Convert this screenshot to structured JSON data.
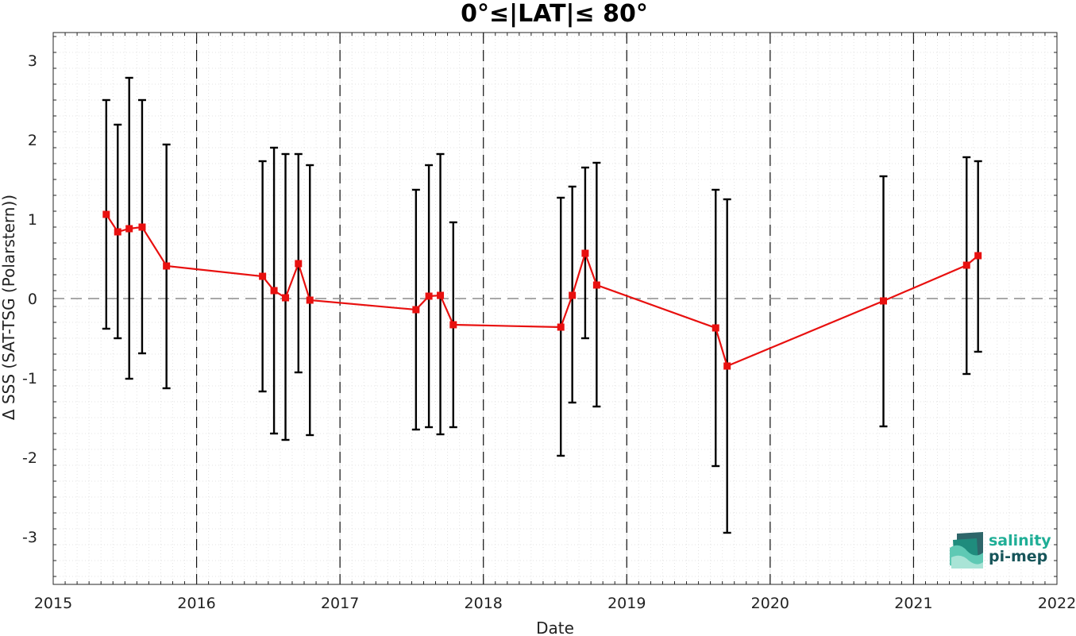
{
  "chart_data": {
    "type": "line",
    "title": "0°≤|LAT|≤ 80°",
    "xlabel": "Date",
    "ylabel": "Δ SSS (SAT-TSG (Polarstern))",
    "xlim": [
      2015,
      2022
    ],
    "ylim": [
      -3.6,
      3.35
    ],
    "x_ticks": [
      "2015",
      "2016",
      "2017",
      "2018",
      "2019",
      "2020",
      "2021",
      "2022"
    ],
    "y_ticks": [
      "3",
      "2",
      "1",
      "0",
      "-1",
      "-2",
      "-3"
    ],
    "y_tick_values": [
      3,
      2,
      1,
      0,
      -1,
      -2,
      -3
    ],
    "year_dividers": [
      2016,
      2017,
      2018,
      2019,
      2020,
      2021
    ],
    "zero_line": 0,
    "grid": true,
    "series": [
      {
        "color": "#e8100f",
        "error_bar_color": "#000000",
        "points": [
          {
            "x": 2015.37,
            "y": 1.06,
            "lo": -0.38,
            "hi": 2.5
          },
          {
            "x": 2015.45,
            "y": 0.84,
            "lo": -0.5,
            "hi": 2.19
          },
          {
            "x": 2015.53,
            "y": 0.88,
            "lo": -1.01,
            "hi": 2.78
          },
          {
            "x": 2015.62,
            "y": 0.9,
            "lo": -0.69,
            "hi": 2.5
          },
          {
            "x": 2015.79,
            "y": 0.41,
            "lo": -1.13,
            "hi": 1.94
          },
          {
            "x": 2016.46,
            "y": 0.28,
            "lo": -1.17,
            "hi": 1.73
          },
          {
            "x": 2016.54,
            "y": 0.1,
            "lo": -1.7,
            "hi": 1.9
          },
          {
            "x": 2016.62,
            "y": 0.01,
            "lo": -1.78,
            "hi": 1.82
          },
          {
            "x": 2016.71,
            "y": 0.44,
            "lo": -0.93,
            "hi": 1.82
          },
          {
            "x": 2016.79,
            "y": -0.02,
            "lo": -1.72,
            "hi": 1.68
          },
          {
            "x": 2017.53,
            "y": -0.14,
            "lo": -1.65,
            "hi": 1.37
          },
          {
            "x": 2017.62,
            "y": 0.03,
            "lo": -1.62,
            "hi": 1.68
          },
          {
            "x": 2017.7,
            "y": 0.04,
            "lo": -1.71,
            "hi": 1.82
          },
          {
            "x": 2017.79,
            "y": -0.33,
            "lo": -1.62,
            "hi": 0.96
          },
          {
            "x": 2018.54,
            "y": -0.36,
            "lo": -1.98,
            "hi": 1.27
          },
          {
            "x": 2018.62,
            "y": 0.04,
            "lo": -1.31,
            "hi": 1.41
          },
          {
            "x": 2018.71,
            "y": 0.57,
            "lo": -0.5,
            "hi": 1.65
          },
          {
            "x": 2018.79,
            "y": 0.17,
            "lo": -1.36,
            "hi": 1.71
          },
          {
            "x": 2019.62,
            "y": -0.37,
            "lo": -2.11,
            "hi": 1.37
          },
          {
            "x": 2019.7,
            "y": -0.85,
            "lo": -2.95,
            "hi": 1.25
          },
          {
            "x": 2020.79,
            "y": -0.03,
            "lo": -1.61,
            "hi": 1.54
          },
          {
            "x": 2021.37,
            "y": 0.42,
            "lo": -0.95,
            "hi": 1.78
          },
          {
            "x": 2021.45,
            "y": 0.54,
            "lo": -0.67,
            "hi": 1.73
          }
        ]
      }
    ]
  },
  "logo": {
    "line1": "salinity",
    "line2": "pi-mep",
    "color_primary": "#1fae96",
    "color_secondary": "#17555a"
  }
}
